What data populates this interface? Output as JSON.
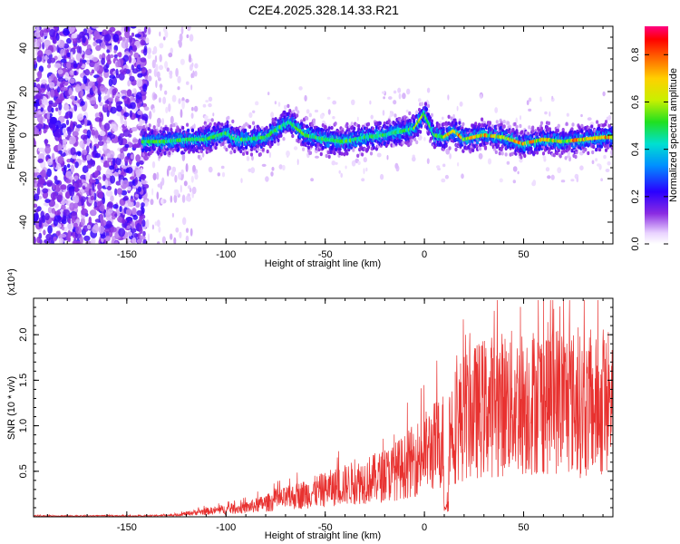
{
  "title": "C2E4.2025.328.14.33.R21",
  "chart_data": [
    {
      "type": "heatmap",
      "xlabel": "Height of straight line (km)",
      "ylabel": "Frequency (Hz)",
      "xlim": [
        -197,
        95
      ],
      "ylim": [
        -50,
        50
      ],
      "x_ticks": [
        -150,
        -100,
        -50,
        0,
        50
      ],
      "y_ticks": [
        -40,
        -20,
        0,
        20,
        40
      ],
      "colorbar": {
        "label": "Normalized spectral amplitude",
        "range": [
          0.0,
          0.92
        ],
        "ticks": [
          "0.0",
          "0.2",
          "0.4",
          "0.6",
          "0.8"
        ]
      },
      "ridge_center_hz": [
        [
          -140,
          -3
        ],
        [
          -130,
          -3
        ],
        [
          -120,
          -2
        ],
        [
          -110,
          -2
        ],
        [
          -100,
          1
        ],
        [
          -95,
          -2
        ],
        [
          -90,
          -2
        ],
        [
          -80,
          -1
        ],
        [
          -72,
          4
        ],
        [
          -68,
          6
        ],
        [
          -60,
          0
        ],
        [
          -50,
          -2
        ],
        [
          -40,
          -3
        ],
        [
          -30,
          -1
        ],
        [
          -20,
          0
        ],
        [
          -10,
          2
        ],
        [
          -5,
          3
        ],
        [
          0,
          10
        ],
        [
          5,
          0
        ],
        [
          10,
          -1
        ],
        [
          15,
          2
        ],
        [
          20,
          -2
        ],
        [
          30,
          0
        ],
        [
          40,
          -1
        ],
        [
          50,
          -4
        ],
        [
          60,
          -2
        ],
        [
          70,
          -3
        ],
        [
          80,
          -2
        ],
        [
          90,
          -1
        ]
      ]
    },
    {
      "type": "line",
      "xlabel": "Height of straight line (km)",
      "ylabel": "SNR (10 * v/v)",
      "y_multiplier": "(x10⁴)",
      "xlim": [
        -197,
        95
      ],
      "ylim": [
        0,
        2.4
      ],
      "x_ticks": [
        -150,
        -100,
        -50,
        0,
        50
      ],
      "y_ticks": [
        "0.5",
        "1.0",
        "1.5",
        "2.0"
      ],
      "color": "#e8312f",
      "envelope_points": [
        [
          -197,
          0.01
        ],
        [
          -140,
          0.01
        ],
        [
          -125,
          0.02
        ],
        [
          -115,
          0.05
        ],
        [
          -100,
          0.08
        ],
        [
          -90,
          0.1
        ],
        [
          -80,
          0.15
        ],
        [
          -70,
          0.2
        ],
        [
          -60,
          0.25
        ],
        [
          -50,
          0.3
        ],
        [
          -40,
          0.35
        ],
        [
          -30,
          0.4
        ],
        [
          -20,
          0.45
        ],
        [
          -10,
          0.55
        ],
        [
          0,
          0.7
        ],
        [
          10,
          0.85
        ],
        [
          15,
          1.0
        ],
        [
          20,
          1.1
        ],
        [
          30,
          1.2
        ],
        [
          40,
          1.25
        ],
        [
          50,
          1.25
        ],
        [
          60,
          1.3
        ],
        [
          70,
          1.3
        ],
        [
          80,
          1.2
        ],
        [
          90,
          1.2
        ],
        [
          95,
          1.2
        ]
      ]
    }
  ]
}
